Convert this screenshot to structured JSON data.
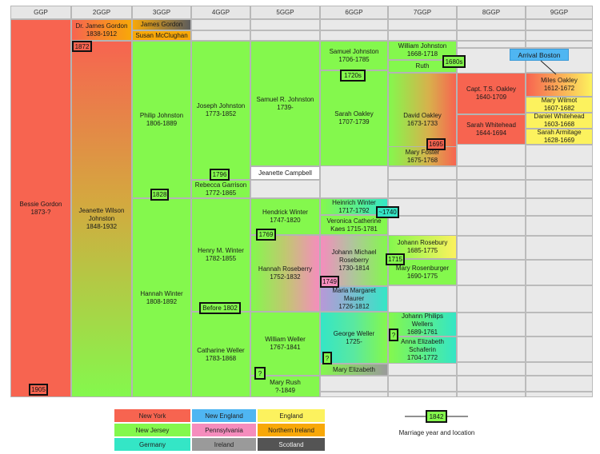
{
  "headers": [
    "GGP",
    "2GGP",
    "3GGP",
    "4GGP",
    "5GGP",
    "6GGP",
    "7GGP",
    "8GGP",
    "9GGP"
  ],
  "colors": {
    "new_york": "#f76450",
    "new_jersey": "#84f84d",
    "germany": "#34e6c6",
    "new_england": "#4fb6f2",
    "pennsylvania": "#f58dbd",
    "ireland": "#9a9a9a",
    "england": "#fcf25e",
    "northern_ireland": "#f8a808",
    "scotland": "#545454",
    "grid": "#e9e9e9"
  },
  "people": [
    {
      "name": "Bessie Gordon\n1873-?",
      "fill": "#f76450"
    },
    {
      "name": "Dr. James Gordon\n1838-1912",
      "fill": "linear-gradient(to right,#f76450,#f8a808)"
    },
    {
      "name": "James Gordon",
      "fill": "linear-gradient(to right,#f8a808,#5c5c5c)"
    },
    {
      "name": "Susan McClughan",
      "fill": "#f8a808"
    },
    {
      "name": "Jeanette Wilson\nJohnston\n1848-1932",
      "fill": "linear-gradient(to bottom,#f76450 0%,#d4a83f 45%,#84f84d 100%)"
    },
    {
      "name": "Philip Johnston\n1806-1889",
      "fill": "#84f84d"
    },
    {
      "name": "Hannah Winter\n1808-1892",
      "fill": "#84f84d"
    },
    {
      "name": "Joseph Johnston\n1773-1852",
      "fill": "#84f84d"
    },
    {
      "name": "Rebecca Garrison\n1772-1865",
      "fill": "#84f84d"
    },
    {
      "name": "Henry M. Winter\n1782-1855",
      "fill": "#84f84d"
    },
    {
      "name": "Catharine Weller\n1783-1868",
      "fill": "#84f84d"
    },
    {
      "name": "Samuel R. Johnston\n1739-",
      "fill": "#84f84d"
    },
    {
      "name": "Jeanette Campbell",
      "fill": "#ffffff"
    },
    {
      "name": "Hendrick Winter\n1747-1820",
      "fill": "#84f84d"
    },
    {
      "name": "Hannah Roseberry\n1752-1832",
      "fill": "linear-gradient(to right,#84f84d 0%,#c0c870 50%,#f58dbd 100%)"
    },
    {
      "name": "William Weller\n1767-1841",
      "fill": "#84f84d"
    },
    {
      "name": "Mary Rush\n?-1849",
      "fill": "#84f84d"
    },
    {
      "name": "Samuel Johnston\n1706-1785",
      "fill": "#84f84d"
    },
    {
      "name": "Sarah Oakley\n1707-1739",
      "fill": "#84f84d"
    },
    {
      "name": "Heinrich Winter\n1717-1792",
      "fill": "linear-gradient(to right,#84f84d,#34e6c6)"
    },
    {
      "name": "Veronica Catherine\nKaes 1715-1781",
      "fill": "#84f84d"
    },
    {
      "name": "Johann Michael\nRoseberry\n1730-1814",
      "fill": "linear-gradient(to right,#f58dbd 0%,#b2c2a0 45%,#84f84d 100%)"
    },
    {
      "name": "Maria Margaret\nMaurer\n1726-1812",
      "fill": "linear-gradient(to right,#b898d8,#34e6c6)"
    },
    {
      "name": "George Weller\n1725-",
      "fill": "linear-gradient(to right,#34e6c6 0%,#5ae8a0 50%,#84f84d 100%)"
    },
    {
      "name": "Mary Elizabeth",
      "fill": "linear-gradient(to right,#84f84d,#9a9a9a)"
    },
    {
      "name": "William Johnston\n1668-1718",
      "fill": "#84f84d"
    },
    {
      "name": "Ruth",
      "fill": "#84f84d"
    },
    {
      "name": "David Oakley\n1673-1733",
      "fill": "linear-gradient(to right,#84f84d 0%,#d8b04c 60%,#f76450 100%)"
    },
    {
      "name": "Mary Foster\n1675-1768",
      "fill": "linear-gradient(to right,#84f84d 0%,#d8b04c 60%,#f76450 100%)"
    },
    {
      "name": "Johann Rosebury\n1685-1775",
      "fill": "linear-gradient(to right,#84f84d,#fcf25e)"
    },
    {
      "name": "Mary Rosenburger\n1690-1775",
      "fill": "#84f84d"
    },
    {
      "name": "Johann Philips\nWellers\n1689-1761",
      "fill": "linear-gradient(to right,#84f84d,#34e6c6)"
    },
    {
      "name": "Anna Elizabeth\nSchaferin\n1704-1772",
      "fill": "linear-gradient(to right,#84f84d,#34e6c6)"
    },
    {
      "name": "Capt. T.S. Oakley\n1640-1709",
      "fill": "#f76450"
    },
    {
      "name": "Sarah Whitehead\n1644-1694",
      "fill": "#f76450"
    },
    {
      "name": "Miles Oakley\n1612-1672",
      "fill": "linear-gradient(to right,#f76450,#fcf25e)"
    },
    {
      "name": "Mary Wilmot\n1607-1682",
      "fill": "#fcf25e"
    },
    {
      "name": "Daniel Whitehead\n1603-1668",
      "fill": "#fcf25e"
    },
    {
      "name": "Sarah Armitage\n1628-1669",
      "fill": "#fcf25e"
    }
  ],
  "callout": {
    "text": "Arrival Boston",
    "fill": "#4fb6f2"
  },
  "marriages": [
    "1905",
    "1872",
    "1828",
    "1796",
    "1769",
    "Before 1802",
    "?",
    "1720s",
    "~1740",
    "1749",
    "?",
    "1680s",
    "1695",
    "1715",
    "?"
  ],
  "legend": [
    {
      "label": "New York",
      "fill": "#f76450"
    },
    {
      "label": "New England",
      "fill": "#4fb6f2"
    },
    {
      "label": "England",
      "fill": "#fcf25e"
    },
    {
      "label": "New Jersey",
      "fill": "#84f84d"
    },
    {
      "label": "Pennsylvania",
      "fill": "#f58dbd"
    },
    {
      "label": "Northern Ireland",
      "fill": "#f8a808"
    },
    {
      "label": "Germany",
      "fill": "#34e6c6"
    },
    {
      "label": "Ireland",
      "fill": "#9a9a9a"
    },
    {
      "label": "Scotland",
      "fill": "#545454"
    }
  ],
  "key": {
    "sample": "1842",
    "caption": "Marriage year and location"
  }
}
